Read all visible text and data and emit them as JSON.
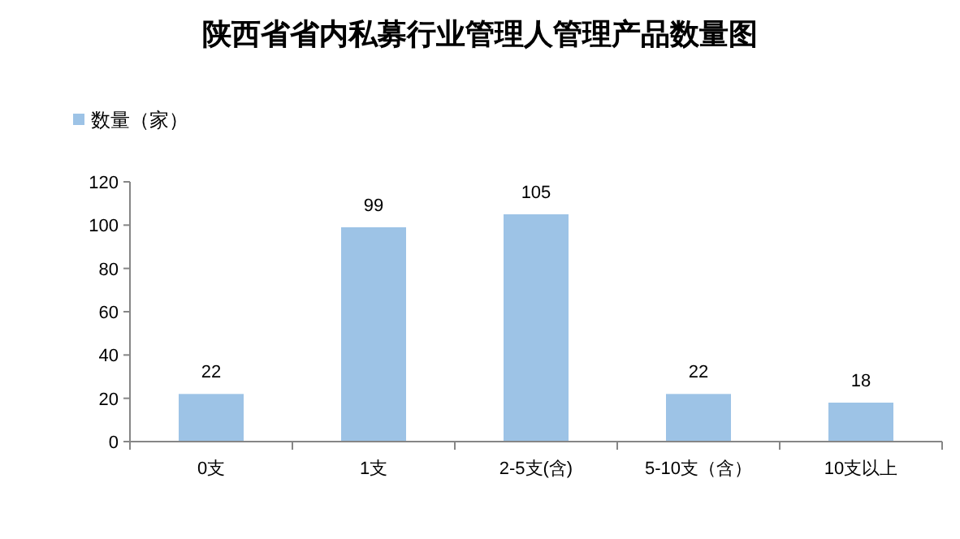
{
  "chart_data": {
    "type": "bar",
    "title": "陕西省省内私募行业管理人管理产品数量图",
    "categories": [
      "0支",
      "1支",
      "2-5支(含)",
      "5-10支（含）",
      "10支以上"
    ],
    "series": [
      {
        "name": "数量（家）",
        "color": "#9dc3e6",
        "values": [
          22,
          99,
          105,
          22,
          18
        ]
      }
    ],
    "ylim": [
      0,
      120
    ],
    "yticks": [
      0,
      20,
      40,
      60,
      80,
      100,
      120
    ],
    "grid": false,
    "legend": "top left",
    "data_labels": true
  }
}
